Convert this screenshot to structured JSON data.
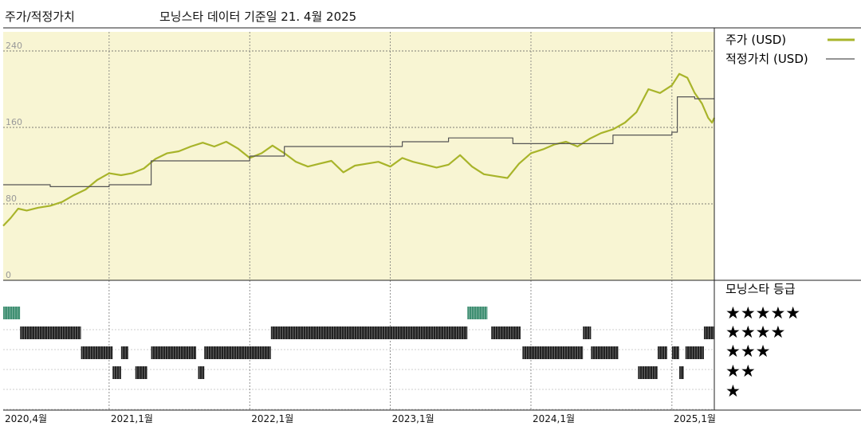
{
  "header": {
    "title": "주가/적정가치",
    "subtitle": "모닝스타 데이터 기준일 21. 4월 2025"
  },
  "legend": {
    "price": "주가 (USD)",
    "fair_value": "적정가치 (USD)",
    "rating_title": "모닝스타 등급",
    "stars": [
      "★★★★★",
      "★★★★",
      "★★★",
      "★★",
      "★"
    ]
  },
  "colors": {
    "price": "#a8b42a",
    "fair_value": "#555555",
    "plot_bg": "#f8f5d3",
    "rating_5": "#3f8f72",
    "rating_other": "#222222"
  },
  "chart_data": {
    "type": "line",
    "x_range": [
      "2020-04-01",
      "2025-04-21"
    ],
    "ylim": [
      0,
      260
    ],
    "y_ticks": [
      0,
      80,
      160,
      240
    ],
    "x_tick_labels": [
      {
        "date": "2020-04-01",
        "label": "2020,4월"
      },
      {
        "date": "2021-01-01",
        "label": "2021,1월"
      },
      {
        "date": "2022-01-01",
        "label": "2022,1월"
      },
      {
        "date": "2023-01-01",
        "label": "2023,1월"
      },
      {
        "date": "2024-01-01",
        "label": "2024,1월"
      },
      {
        "date": "2025-01-01",
        "label": "2025,1월"
      }
    ],
    "series": [
      {
        "key": "price",
        "points": [
          [
            "2020-04-01",
            57
          ],
          [
            "2020-04-20",
            65
          ],
          [
            "2020-05-10",
            75
          ],
          [
            "2020-06-01",
            73
          ],
          [
            "2020-07-01",
            76
          ],
          [
            "2020-08-01",
            78
          ],
          [
            "2020-09-01",
            82
          ],
          [
            "2020-10-01",
            89
          ],
          [
            "2020-11-01",
            95
          ],
          [
            "2020-12-01",
            105
          ],
          [
            "2021-01-01",
            112
          ],
          [
            "2021-02-01",
            110
          ],
          [
            "2021-03-01",
            112
          ],
          [
            "2021-04-01",
            117
          ],
          [
            "2021-05-01",
            127
          ],
          [
            "2021-06-01",
            133
          ],
          [
            "2021-07-01",
            135
          ],
          [
            "2021-08-01",
            140
          ],
          [
            "2021-09-01",
            144
          ],
          [
            "2021-10-01",
            140
          ],
          [
            "2021-11-01",
            145
          ],
          [
            "2021-12-01",
            138
          ],
          [
            "2022-01-01",
            128
          ],
          [
            "2022-02-01",
            133
          ],
          [
            "2022-03-01",
            141
          ],
          [
            "2022-04-01",
            133
          ],
          [
            "2022-05-01",
            124
          ],
          [
            "2022-06-01",
            119
          ],
          [
            "2022-07-01",
            122
          ],
          [
            "2022-08-01",
            125
          ],
          [
            "2022-09-01",
            113
          ],
          [
            "2022-10-01",
            120
          ],
          [
            "2022-11-01",
            122
          ],
          [
            "2022-12-01",
            124
          ],
          [
            "2023-01-01",
            119
          ],
          [
            "2023-02-01",
            128
          ],
          [
            "2023-03-01",
            124
          ],
          [
            "2023-04-01",
            121
          ],
          [
            "2023-05-01",
            118
          ],
          [
            "2023-06-01",
            121
          ],
          [
            "2023-07-01",
            131
          ],
          [
            "2023-08-01",
            119
          ],
          [
            "2023-09-01",
            111
          ],
          [
            "2023-10-01",
            109
          ],
          [
            "2023-11-01",
            107
          ],
          [
            "2023-12-01",
            122
          ],
          [
            "2024-01-01",
            133
          ],
          [
            "2024-02-01",
            137
          ],
          [
            "2024-03-01",
            142
          ],
          [
            "2024-04-01",
            145
          ],
          [
            "2024-05-01",
            140
          ],
          [
            "2024-06-01",
            148
          ],
          [
            "2024-07-01",
            154
          ],
          [
            "2024-08-01",
            158
          ],
          [
            "2024-09-01",
            165
          ],
          [
            "2024-10-01",
            176
          ],
          [
            "2024-11-01",
            200
          ],
          [
            "2024-12-01",
            196
          ],
          [
            "2025-01-01",
            204
          ],
          [
            "2025-01-20",
            216
          ],
          [
            "2025-02-10",
            212
          ],
          [
            "2025-03-01",
            196
          ],
          [
            "2025-03-20",
            185
          ],
          [
            "2025-04-05",
            170
          ],
          [
            "2025-04-15",
            165
          ],
          [
            "2025-04-21",
            170
          ]
        ]
      },
      {
        "key": "fair_value",
        "points": [
          [
            "2020-04-01",
            100
          ],
          [
            "2020-08-01",
            100
          ],
          [
            "2020-08-01",
            98
          ],
          [
            "2021-01-01",
            98
          ],
          [
            "2021-01-01",
            100
          ],
          [
            "2021-04-20",
            100
          ],
          [
            "2021-04-20",
            125
          ],
          [
            "2022-01-01",
            125
          ],
          [
            "2022-01-01",
            130
          ],
          [
            "2022-04-01",
            130
          ],
          [
            "2022-04-01",
            140
          ],
          [
            "2023-02-01",
            140
          ],
          [
            "2023-02-01",
            145
          ],
          [
            "2023-06-01",
            145
          ],
          [
            "2023-06-01",
            149
          ],
          [
            "2023-11-15",
            149
          ],
          [
            "2023-11-15",
            143
          ],
          [
            "2024-08-01",
            143
          ],
          [
            "2024-08-01",
            152
          ],
          [
            "2025-01-01",
            152
          ],
          [
            "2025-01-01",
            155
          ],
          [
            "2025-01-15",
            155
          ],
          [
            "2025-01-15",
            192
          ],
          [
            "2025-03-01",
            192
          ],
          [
            "2025-03-01",
            190
          ],
          [
            "2025-04-21",
            190
          ]
        ]
      }
    ],
    "rating_periods": [
      {
        "stars": 5,
        "start": "2020-04-01",
        "end": "2020-05-15"
      },
      {
        "stars": 4,
        "start": "2020-05-15",
        "end": "2020-10-20"
      },
      {
        "stars": 3,
        "start": "2020-10-20",
        "end": "2021-01-10"
      },
      {
        "stars": 2,
        "start": "2021-01-10",
        "end": "2021-02-01"
      },
      {
        "stars": 3,
        "start": "2021-02-01",
        "end": "2021-02-20"
      },
      {
        "stars": 2,
        "start": "2021-03-10",
        "end": "2021-04-10"
      },
      {
        "stars": 3,
        "start": "2021-04-20",
        "end": "2021-08-15"
      },
      {
        "stars": 2,
        "start": "2021-08-20",
        "end": "2021-09-05"
      },
      {
        "stars": 3,
        "start": "2021-09-05",
        "end": "2022-02-25"
      },
      {
        "stars": 4,
        "start": "2022-02-25",
        "end": "2023-07-20"
      },
      {
        "stars": 5,
        "start": "2023-07-20",
        "end": "2023-09-10"
      },
      {
        "stars": 4,
        "start": "2023-09-20",
        "end": "2023-12-05"
      },
      {
        "stars": 3,
        "start": "2023-12-10",
        "end": "2024-05-15"
      },
      {
        "stars": 4,
        "start": "2024-05-15",
        "end": "2024-06-05"
      },
      {
        "stars": 3,
        "start": "2024-06-05",
        "end": "2024-08-15"
      },
      {
        "stars": 2,
        "start": "2024-10-05",
        "end": "2024-11-25"
      },
      {
        "stars": 3,
        "start": "2024-11-25",
        "end": "2024-12-20"
      },
      {
        "stars": 3,
        "start": "2025-01-01",
        "end": "2025-01-20"
      },
      {
        "stars": 2,
        "start": "2025-01-20",
        "end": "2025-02-01"
      },
      {
        "stars": 3,
        "start": "2025-02-05",
        "end": "2025-03-25"
      },
      {
        "stars": 4,
        "start": "2025-03-25",
        "end": "2025-04-21"
      }
    ]
  }
}
